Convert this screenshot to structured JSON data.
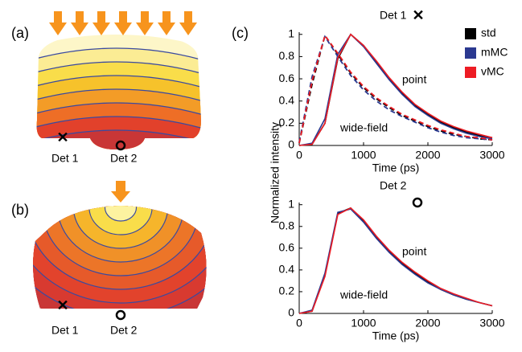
{
  "panels": {
    "a": {
      "label": "(a)",
      "det1": "Det 1",
      "det2": "Det 2"
    },
    "b": {
      "label": "(b)",
      "det1": "Det 1",
      "det2": "Det 2"
    },
    "c": {
      "label": "(c)"
    }
  },
  "chart_data": [
    {
      "type": "line",
      "detector": "Det 1",
      "ylabel": "Normalized intensity",
      "xlabel": "Time (ps)",
      "annotations": [
        "point",
        "wide-field"
      ],
      "legend": true,
      "x": [
        0,
        200,
        400,
        600,
        800,
        1000,
        1200,
        1400,
        1600,
        1800,
        2000,
        2200,
        2400,
        2600,
        2800,
        3000
      ],
      "series": [
        {
          "name": "std",
          "color": "#000000",
          "values": [
            0,
            0.01,
            0.2,
            0.78,
            1.0,
            0.9,
            0.75,
            0.6,
            0.47,
            0.36,
            0.28,
            0.21,
            0.16,
            0.12,
            0.09,
            0.07
          ],
          "dashed_values": [
            0.02,
            0.55,
            0.99,
            0.82,
            0.65,
            0.52,
            0.42,
            0.34,
            0.27,
            0.22,
            0.17,
            0.13,
            0.1,
            0.08,
            0.06,
            0.05
          ]
        },
        {
          "name": "mMC",
          "color": "#2b3990",
          "values": [
            0,
            0.02,
            0.24,
            0.82,
            1.0,
            0.89,
            0.74,
            0.59,
            0.46,
            0.35,
            0.27,
            0.2,
            0.15,
            0.11,
            0.08,
            0.06
          ],
          "dashed_values": [
            0.03,
            0.62,
            0.98,
            0.8,
            0.63,
            0.5,
            0.4,
            0.32,
            0.26,
            0.21,
            0.16,
            0.12,
            0.09,
            0.07,
            0.06,
            0.05
          ]
        },
        {
          "name": "vMC",
          "color": "#ed1c24",
          "values": [
            0,
            0.01,
            0.2,
            0.79,
            1.0,
            0.9,
            0.76,
            0.61,
            0.48,
            0.37,
            0.29,
            0.22,
            0.17,
            0.13,
            0.1,
            0.07
          ],
          "dashed_values": [
            0.02,
            0.58,
            0.99,
            0.83,
            0.66,
            0.53,
            0.43,
            0.35,
            0.28,
            0.23,
            0.18,
            0.14,
            0.11,
            0.08,
            0.07,
            0.05
          ]
        }
      ],
      "xlim": [
        0,
        3000
      ],
      "xticks": [
        0,
        1000,
        2000,
        3000
      ],
      "ylim": [
        0,
        1.02
      ],
      "yticks": [
        0,
        0.2,
        0.4,
        0.6,
        0.8,
        1
      ]
    },
    {
      "type": "line",
      "detector": "Det 2",
      "xlabel": "Time (ps)",
      "annotations": [
        "point",
        "wide-field"
      ],
      "legend": false,
      "x": [
        0,
        200,
        400,
        600,
        800,
        1000,
        1200,
        1400,
        1600,
        1800,
        2000,
        2200,
        2400,
        2600,
        2800,
        3000
      ],
      "series": [
        {
          "name": "std",
          "color": "#000000",
          "values": [
            0,
            0.02,
            0.35,
            0.92,
            0.97,
            0.85,
            0.7,
            0.57,
            0.46,
            0.37,
            0.29,
            0.22,
            0.17,
            0.13,
            0.1,
            0.07
          ]
        },
        {
          "name": "mMC",
          "color": "#2b3990",
          "values": [
            0,
            0.03,
            0.37,
            0.93,
            0.96,
            0.84,
            0.69,
            0.56,
            0.45,
            0.36,
            0.28,
            0.22,
            0.17,
            0.13,
            0.1,
            0.07
          ]
        },
        {
          "name": "vMC",
          "color": "#ed1c24",
          "values": [
            0,
            0.02,
            0.34,
            0.91,
            0.97,
            0.86,
            0.71,
            0.58,
            0.47,
            0.38,
            0.3,
            0.23,
            0.18,
            0.14,
            0.1,
            0.07
          ]
        }
      ],
      "xlim": [
        0,
        3000
      ],
      "xticks": [
        0,
        1000,
        2000,
        3000
      ],
      "ylim": [
        0,
        1.02
      ],
      "yticks": [
        0,
        0.2,
        0.4,
        0.6,
        0.8,
        1
      ]
    }
  ]
}
